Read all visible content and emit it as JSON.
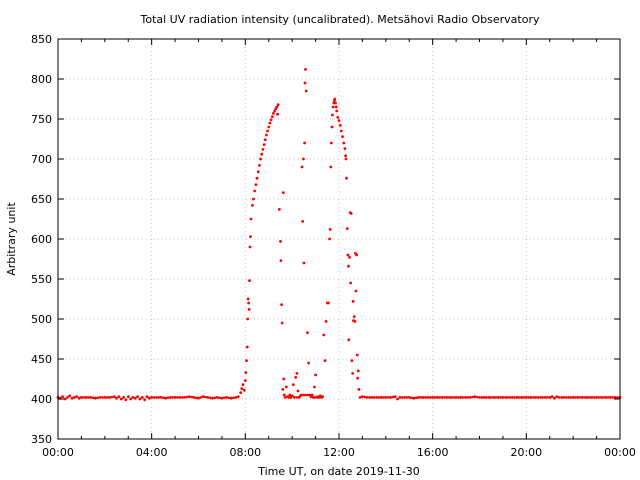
{
  "chart_data": {
    "type": "scatter",
    "title": "Total UV radiation intensity (uncalibrated). Metsähovi Radio Observatory",
    "xlabel": "Time UT, on date 2019-11-30",
    "ylabel": "Arbitrary unit",
    "xlim": [
      0,
      24
    ],
    "ylim": [
      350,
      850
    ],
    "x_unit": "hours UT",
    "xticks": [
      0,
      4,
      8,
      12,
      16,
      20,
      24
    ],
    "xtick_labels": [
      "00:00",
      "04:00",
      "08:00",
      "12:00",
      "16:00",
      "20:00",
      "00:00"
    ],
    "yticks": [
      350,
      400,
      450,
      500,
      550,
      600,
      650,
      700,
      750,
      800,
      850
    ],
    "ytick_labels": [
      "350",
      "400",
      "450",
      "500",
      "550",
      "600",
      "650",
      "700",
      "750",
      "800",
      "850"
    ],
    "grid": true,
    "marker_color": "#ff0000",
    "series": [
      {
        "name": "",
        "points": [
          [
            0.0,
            402
          ],
          [
            0.1,
            401
          ],
          [
            0.2,
            403
          ],
          [
            0.3,
            400
          ],
          [
            0.4,
            402
          ],
          [
            0.5,
            404
          ],
          [
            0.6,
            401
          ],
          [
            0.7,
            402
          ],
          [
            0.8,
            403
          ],
          [
            0.9,
            401
          ],
          [
            1.0,
            402
          ],
          [
            1.2,
            402
          ],
          [
            1.4,
            402
          ],
          [
            1.6,
            401
          ],
          [
            1.8,
            402
          ],
          [
            2.0,
            402
          ],
          [
            2.2,
            402
          ],
          [
            2.4,
            403
          ],
          [
            2.5,
            401
          ],
          [
            2.6,
            403
          ],
          [
            2.7,
            400
          ],
          [
            2.8,
            402
          ],
          [
            2.9,
            399
          ],
          [
            3.0,
            403
          ],
          [
            3.1,
            400
          ],
          [
            3.2,
            402
          ],
          [
            3.3,
            401
          ],
          [
            3.4,
            403
          ],
          [
            3.5,
            400
          ],
          [
            3.6,
            402
          ],
          [
            3.7,
            399
          ],
          [
            3.8,
            403
          ],
          [
            3.9,
            401
          ],
          [
            4.0,
            402
          ],
          [
            4.2,
            402
          ],
          [
            4.4,
            402
          ],
          [
            4.6,
            401
          ],
          [
            4.8,
            402
          ],
          [
            5.0,
            402
          ],
          [
            5.2,
            402
          ],
          [
            5.4,
            402
          ],
          [
            5.6,
            403
          ],
          [
            5.8,
            402
          ],
          [
            6.0,
            401
          ],
          [
            6.2,
            403
          ],
          [
            6.4,
            402
          ],
          [
            6.6,
            401
          ],
          [
            6.8,
            402
          ],
          [
            7.0,
            401
          ],
          [
            7.2,
            402
          ],
          [
            7.4,
            401
          ],
          [
            7.6,
            402
          ],
          [
            7.7,
            403
          ],
          [
            7.8,
            408
          ],
          [
            7.85,
            413
          ],
          [
            7.9,
            418
          ],
          [
            7.95,
            411
          ],
          [
            8.0,
            423
          ],
          [
            8.02,
            433
          ],
          [
            8.05,
            448
          ],
          [
            8.08,
            465
          ],
          [
            8.1,
            500
          ],
          [
            8.12,
            525
          ],
          [
            8.14,
            520
          ],
          [
            8.16,
            512
          ],
          [
            8.18,
            548
          ],
          [
            8.2,
            590
          ],
          [
            8.22,
            603
          ],
          [
            8.24,
            625
          ],
          [
            8.3,
            642
          ],
          [
            8.35,
            650
          ],
          [
            8.4,
            660
          ],
          [
            8.45,
            668
          ],
          [
            8.5,
            676
          ],
          [
            8.55,
            684
          ],
          [
            8.6,
            692
          ],
          [
            8.65,
            700
          ],
          [
            8.7,
            706
          ],
          [
            8.75,
            712
          ],
          [
            8.8,
            718
          ],
          [
            8.85,
            724
          ],
          [
            8.9,
            730
          ],
          [
            8.95,
            735
          ],
          [
            9.0,
            740
          ],
          [
            9.05,
            745
          ],
          [
            9.1,
            749
          ],
          [
            9.15,
            753
          ],
          [
            9.2,
            757
          ],
          [
            9.25,
            760
          ],
          [
            9.3,
            763
          ],
          [
            9.35,
            765
          ],
          [
            9.38,
            756
          ],
          [
            9.4,
            768
          ],
          [
            9.45,
            637
          ],
          [
            9.5,
            597
          ],
          [
            9.52,
            573
          ],
          [
            9.55,
            518
          ],
          [
            9.57,
            495
          ],
          [
            9.6,
            412
          ],
          [
            9.62,
            658
          ],
          [
            9.64,
            425
          ],
          [
            9.66,
            405
          ],
          [
            9.7,
            402
          ],
          [
            9.75,
            415
          ],
          [
            9.8,
            403
          ],
          [
            9.85,
            402
          ],
          [
            9.9,
            405
          ],
          [
            9.95,
            402
          ],
          [
            10.0,
            404
          ],
          [
            10.05,
            418
          ],
          [
            10.1,
            402
          ],
          [
            10.15,
            427
          ],
          [
            10.2,
            432
          ],
          [
            10.25,
            410
          ],
          [
            10.3,
            402
          ],
          [
            10.35,
            404
          ],
          [
            10.4,
            405
          ],
          [
            10.42,
            690
          ],
          [
            10.45,
            622
          ],
          [
            10.48,
            700
          ],
          [
            10.5,
            570
          ],
          [
            10.53,
            720
          ],
          [
            10.55,
            795
          ],
          [
            10.57,
            812
          ],
          [
            10.6,
            785
          ],
          [
            10.65,
            483
          ],
          [
            10.7,
            445
          ],
          [
            10.75,
            405
          ],
          [
            10.8,
            403
          ],
          [
            10.85,
            405
          ],
          [
            10.9,
            402
          ],
          [
            10.95,
            415
          ],
          [
            11.0,
            430
          ],
          [
            11.05,
            402
          ],
          [
            11.1,
            403
          ],
          [
            11.15,
            402
          ],
          [
            11.2,
            404
          ],
          [
            11.25,
            402
          ],
          [
            11.3,
            403
          ],
          [
            11.35,
            480
          ],
          [
            11.4,
            448
          ],
          [
            11.45,
            497
          ],
          [
            11.5,
            520
          ],
          [
            11.55,
            520
          ],
          [
            11.6,
            600
          ],
          [
            11.62,
            612
          ],
          [
            11.65,
            690
          ],
          [
            11.67,
            720
          ],
          [
            11.7,
            740
          ],
          [
            11.72,
            755
          ],
          [
            11.75,
            765
          ],
          [
            11.78,
            770
          ],
          [
            11.8,
            773
          ],
          [
            11.82,
            775
          ],
          [
            11.85,
            770
          ],
          [
            11.88,
            765
          ],
          [
            11.9,
            760
          ],
          [
            11.95,
            752
          ],
          [
            12.0,
            748
          ],
          [
            12.05,
            742
          ],
          [
            12.1,
            735
          ],
          [
            12.15,
            728
          ],
          [
            12.2,
            720
          ],
          [
            12.25,
            713
          ],
          [
            12.28,
            704
          ],
          [
            12.3,
            700
          ],
          [
            12.32,
            676
          ],
          [
            12.35,
            613
          ],
          [
            12.38,
            580
          ],
          [
            12.4,
            566
          ],
          [
            12.42,
            474
          ],
          [
            12.45,
            577
          ],
          [
            12.48,
            633
          ],
          [
            12.5,
            545
          ],
          [
            12.52,
            632
          ],
          [
            12.55,
            448
          ],
          [
            12.58,
            432
          ],
          [
            12.6,
            522
          ],
          [
            12.62,
            498
          ],
          [
            12.65,
            503
          ],
          [
            12.68,
            497
          ],
          [
            12.7,
            582
          ],
          [
            12.72,
            535
          ],
          [
            12.75,
            580
          ],
          [
            12.78,
            455
          ],
          [
            12.8,
            426
          ],
          [
            12.82,
            435
          ],
          [
            12.85,
            412
          ],
          [
            12.9,
            402
          ],
          [
            13.0,
            403
          ],
          [
            13.2,
            402
          ],
          [
            13.4,
            402
          ],
          [
            13.6,
            402
          ],
          [
            13.8,
            402
          ],
          [
            14.0,
            402
          ],
          [
            14.2,
            402
          ],
          [
            14.4,
            403
          ],
          [
            14.5,
            400
          ],
          [
            14.6,
            402
          ],
          [
            14.8,
            402
          ],
          [
            15.0,
            402
          ],
          [
            15.2,
            401
          ],
          [
            15.4,
            402
          ],
          [
            15.6,
            402
          ],
          [
            15.8,
            402
          ],
          [
            16.0,
            402
          ],
          [
            16.2,
            402
          ],
          [
            16.4,
            402
          ],
          [
            16.6,
            402
          ],
          [
            16.8,
            402
          ],
          [
            17.0,
            402
          ],
          [
            17.2,
            402
          ],
          [
            17.4,
            402
          ],
          [
            17.6,
            402
          ],
          [
            17.8,
            403
          ],
          [
            18.0,
            402
          ],
          [
            18.2,
            402
          ],
          [
            18.4,
            402
          ],
          [
            18.6,
            402
          ],
          [
            18.8,
            402
          ],
          [
            19.0,
            402
          ],
          [
            19.2,
            402
          ],
          [
            19.4,
            402
          ],
          [
            19.6,
            402
          ],
          [
            19.8,
            402
          ],
          [
            20.0,
            402
          ],
          [
            20.2,
            402
          ],
          [
            20.4,
            402
          ],
          [
            20.6,
            402
          ],
          [
            20.8,
            402
          ],
          [
            21.0,
            402
          ],
          [
            21.1,
            403
          ],
          [
            21.2,
            401
          ],
          [
            21.3,
            403
          ],
          [
            21.4,
            402
          ],
          [
            21.6,
            402
          ],
          [
            21.8,
            402
          ],
          [
            22.0,
            402
          ],
          [
            22.2,
            402
          ],
          [
            22.4,
            402
          ],
          [
            22.6,
            402
          ],
          [
            22.8,
            402
          ],
          [
            23.0,
            402
          ],
          [
            23.2,
            402
          ],
          [
            23.4,
            402
          ],
          [
            23.6,
            402
          ],
          [
            23.8,
            402
          ],
          [
            24.0,
            402
          ]
        ]
      }
    ]
  }
}
